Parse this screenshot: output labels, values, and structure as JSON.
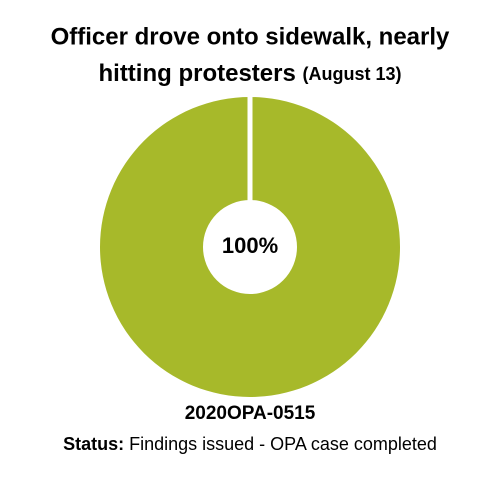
{
  "chart_data": {
    "type": "pie",
    "title": "Officer drove onto sidewalk, nearly hitting protesters",
    "subtitle": "(August 13)",
    "values": [
      100
    ],
    "value_labels": [
      "100%"
    ],
    "color": "#a7b92a",
    "case_id": "2020OPA-0515",
    "status_label": "Status:",
    "status": "Findings issued - OPA case completed"
  }
}
